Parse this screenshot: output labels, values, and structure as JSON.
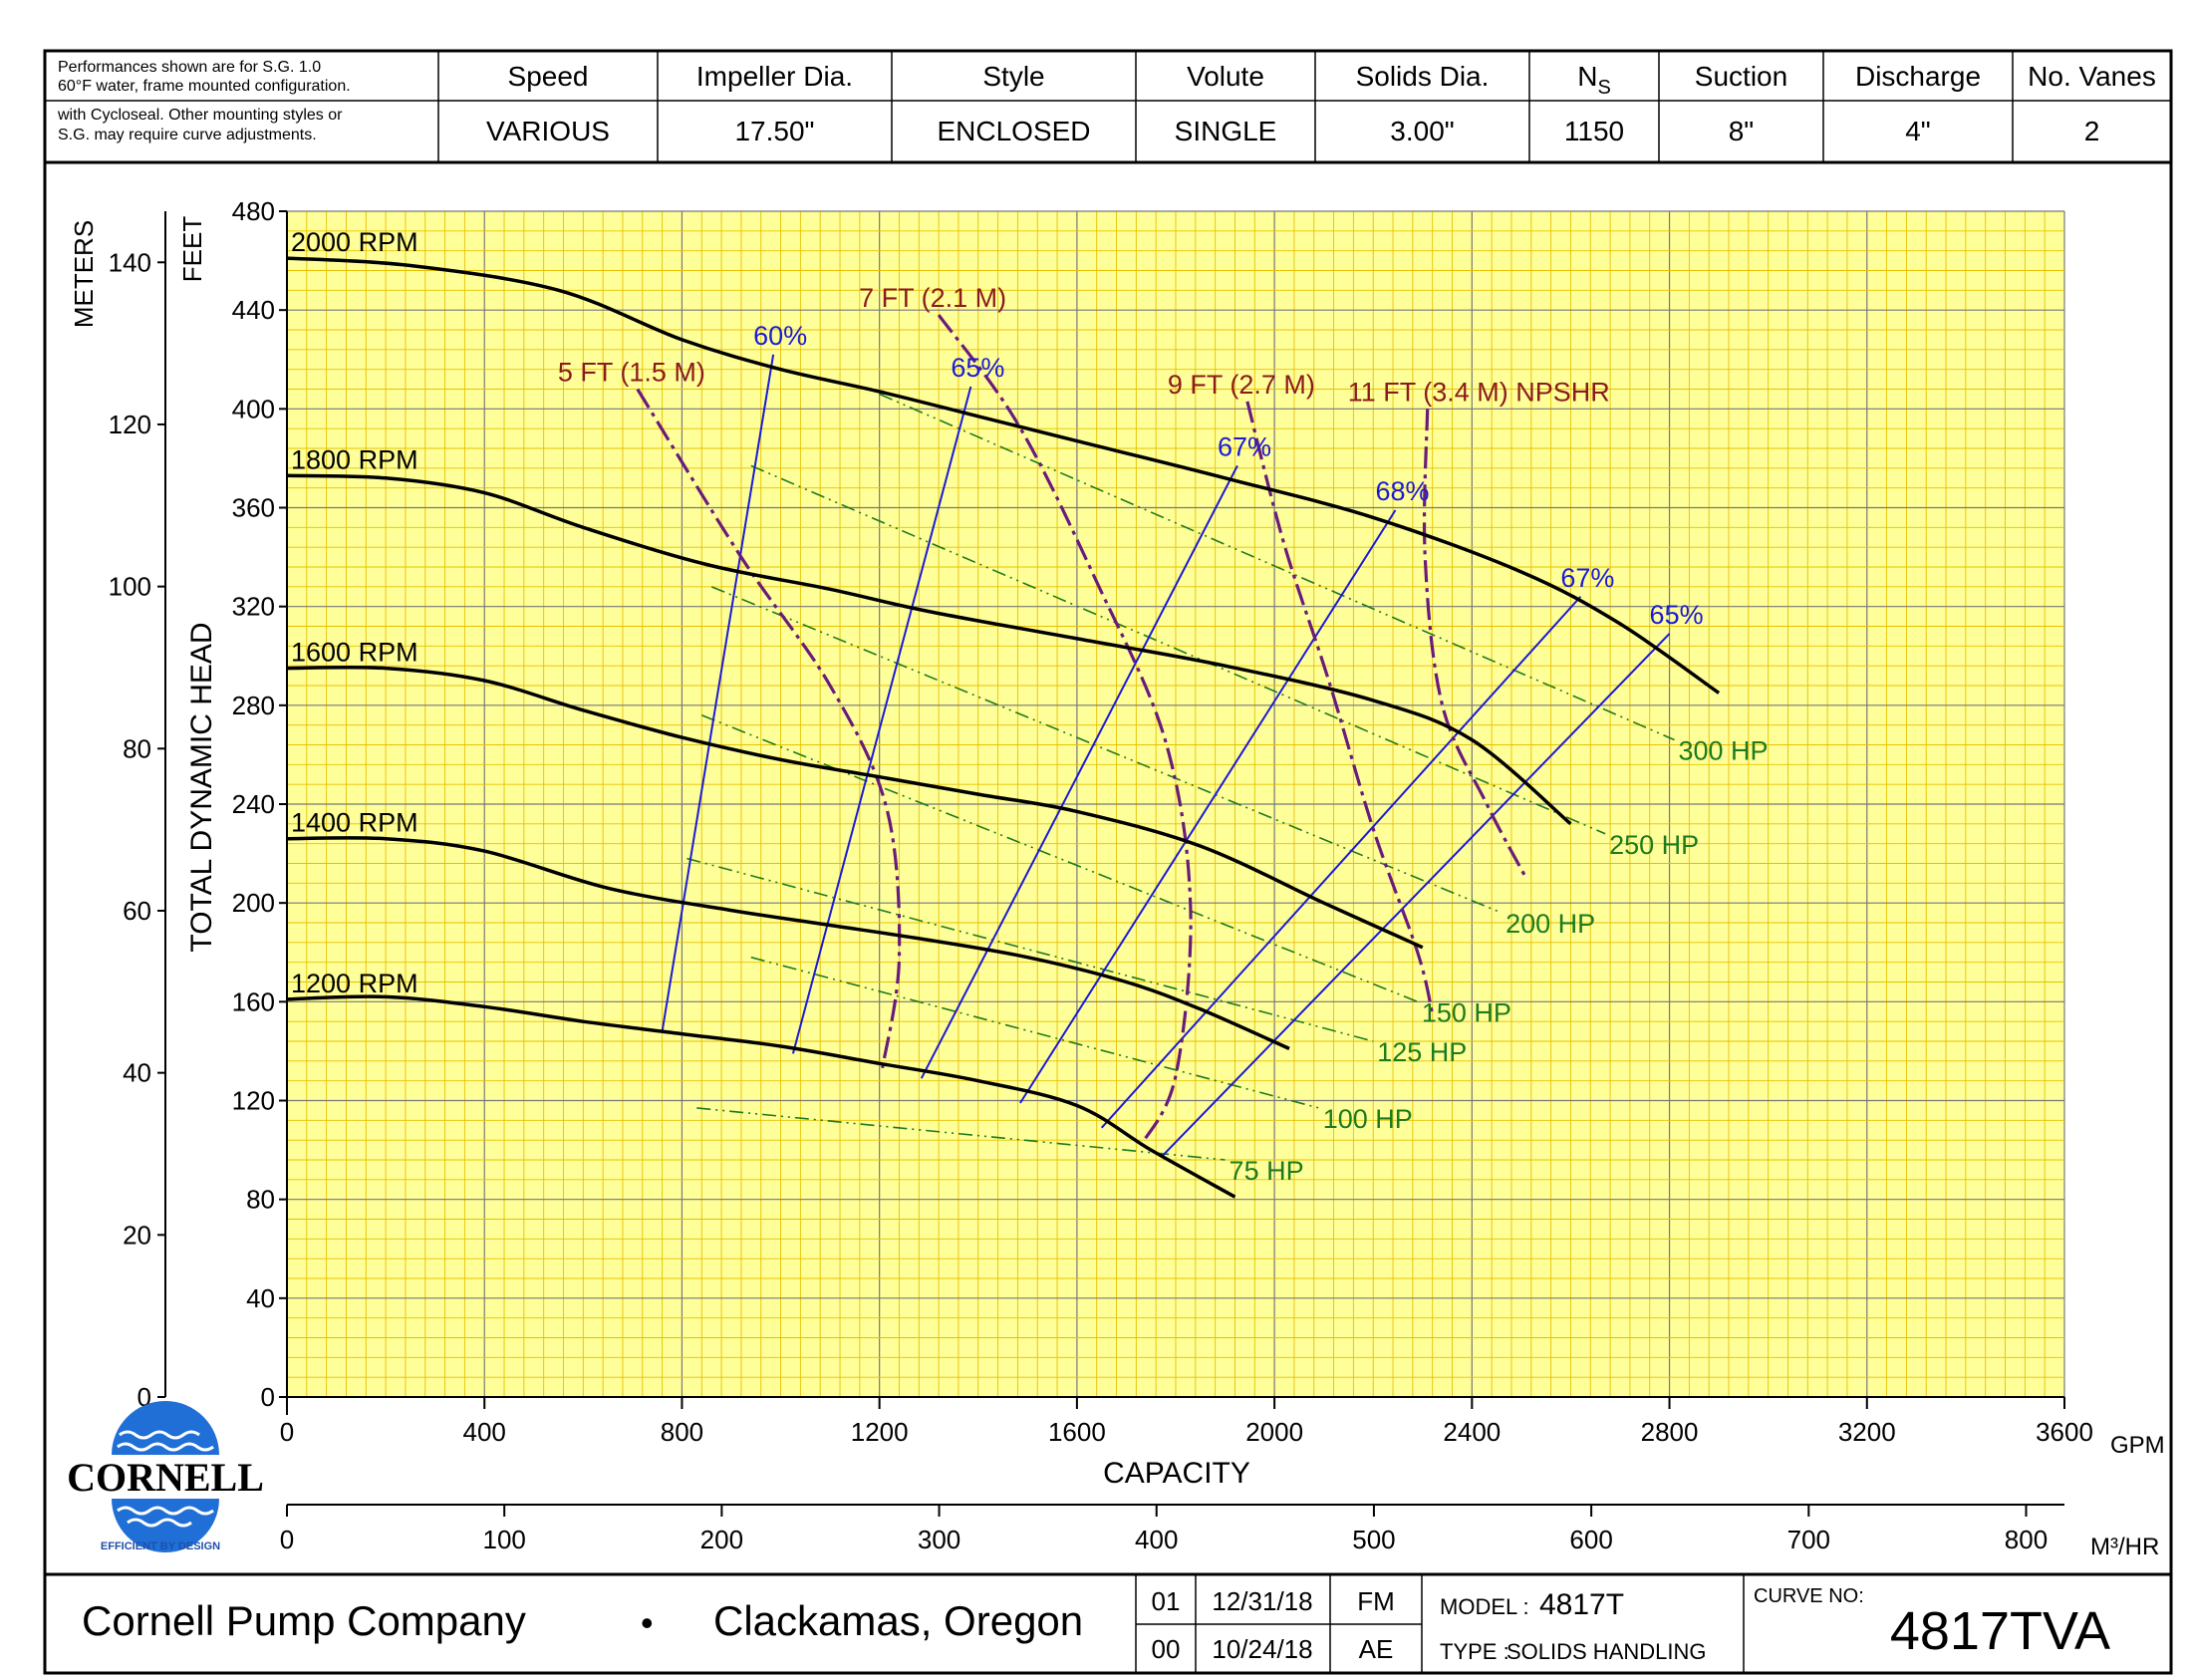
{
  "header": {
    "note_lines": [
      "Performances shown are for S.G. 1.0",
      "60°F water, frame mounted configuration.",
      "with Cycloseal. Other mounting styles or",
      "S.G. may require curve adjustments."
    ],
    "columns": [
      {
        "label": "Speed",
        "value": "VARIOUS"
      },
      {
        "label": "Impeller Dia.",
        "value": "17.50\""
      },
      {
        "label": "Style",
        "value": "ENCLOSED"
      },
      {
        "label": "Volute",
        "value": "SINGLE"
      },
      {
        "label": "Solids Dia.",
        "value": "3.00\""
      },
      {
        "label": "N",
        "label_sub": "S",
        "value": "1150"
      },
      {
        "label": "Suction",
        "value": "8\""
      },
      {
        "label": "Discharge",
        "value": "4\""
      },
      {
        "label": "No. Vanes",
        "value": "2"
      }
    ]
  },
  "chart_data": {
    "type": "line",
    "title": "",
    "xlabel": "CAPACITY",
    "x_unit": "GPM",
    "x2_unit": "M³/HR",
    "ylabel": "TOTAL DYNAMIC HEAD",
    "y_unit_left": "FEET",
    "y2_unit": "METERS",
    "xlim": [
      0,
      3600
    ],
    "ylim": [
      0,
      480
    ],
    "x_ticks": [
      0,
      400,
      800,
      1200,
      1600,
      2000,
      2400,
      2800,
      3200,
      3600
    ],
    "y_ticks": [
      0,
      40,
      80,
      120,
      160,
      200,
      240,
      280,
      320,
      360,
      400,
      440,
      480
    ],
    "meter_ticks": [
      0,
      20,
      40,
      60,
      80,
      100,
      120,
      140
    ],
    "m3hr_ticks": [
      0,
      100,
      200,
      300,
      400,
      500,
      600,
      700,
      800
    ],
    "grid": true,
    "colors": {
      "background": "#ffff99",
      "grid_minor": "#e6c000",
      "grid_major": "#777777",
      "rpm": "#000000",
      "efficiency": "#1a1ad6",
      "npshr": "#6a1b7a",
      "hp": "#1d7a1d",
      "npshr_label": "#8b1a1a"
    },
    "rpm_curves": [
      {
        "name": "2000 RPM",
        "points": [
          [
            0,
            461
          ],
          [
            250,
            458
          ],
          [
            550,
            448
          ],
          [
            800,
            428
          ],
          [
            1000,
            416
          ],
          [
            1200,
            407
          ],
          [
            1400,
            397
          ],
          [
            1600,
            387
          ],
          [
            1900,
            372
          ],
          [
            2200,
            356
          ],
          [
            2500,
            334
          ],
          [
            2700,
            313
          ],
          [
            2900,
            285
          ]
        ]
      },
      {
        "name": "1800 RPM",
        "points": [
          [
            0,
            373
          ],
          [
            200,
            372
          ],
          [
            400,
            366
          ],
          [
            600,
            352
          ],
          [
            850,
            337
          ],
          [
            1100,
            327
          ],
          [
            1300,
            318
          ],
          [
            1600,
            307
          ],
          [
            1900,
            296
          ],
          [
            2200,
            282
          ],
          [
            2400,
            266
          ],
          [
            2600,
            232
          ]
        ]
      },
      {
        "name": "1600 RPM",
        "points": [
          [
            0,
            295
          ],
          [
            200,
            295
          ],
          [
            400,
            290
          ],
          [
            600,
            278
          ],
          [
            800,
            267
          ],
          [
            1000,
            258
          ],
          [
            1200,
            251
          ],
          [
            1400,
            244
          ],
          [
            1600,
            237
          ],
          [
            1850,
            223
          ],
          [
            2100,
            200
          ],
          [
            2300,
            182
          ]
        ]
      },
      {
        "name": "1400 RPM",
        "points": [
          [
            0,
            226
          ],
          [
            200,
            226
          ],
          [
            400,
            221
          ],
          [
            650,
            206
          ],
          [
            900,
            197
          ],
          [
            1100,
            191
          ],
          [
            1300,
            185
          ],
          [
            1500,
            178
          ],
          [
            1700,
            168
          ],
          [
            1850,
            157
          ],
          [
            2030,
            141
          ]
        ]
      },
      {
        "name": "1200 RPM",
        "points": [
          [
            0,
            161
          ],
          [
            200,
            162
          ],
          [
            400,
            158
          ],
          [
            600,
            152
          ],
          [
            800,
            147
          ],
          [
            1000,
            142
          ],
          [
            1200,
            135
          ],
          [
            1400,
            128
          ],
          [
            1600,
            118
          ],
          [
            1750,
            100
          ],
          [
            1920,
            81
          ]
        ]
      }
    ],
    "efficiency_lines": [
      {
        "name": "60%",
        "points": [
          [
            760,
            148
          ],
          [
            985,
            422
          ]
        ]
      },
      {
        "name": "65%",
        "points": [
          [
            1025,
            139
          ],
          [
            1385,
            409
          ]
        ]
      },
      {
        "name": "67%",
        "points": [
          [
            1285,
            129
          ],
          [
            1925,
            377
          ]
        ]
      },
      {
        "name": "68%",
        "points": [
          [
            1485,
            119
          ],
          [
            2245,
            359
          ]
        ]
      },
      {
        "name": "67%",
        "points": [
          [
            1650,
            109
          ],
          [
            2620,
            324
          ]
        ]
      },
      {
        "name": "65%",
        "points": [
          [
            1770,
            97
          ],
          [
            2800,
            309
          ]
        ]
      }
    ],
    "npshr_curves": [
      {
        "name": "5 FT (1.5 M)",
        "points": [
          [
            710,
            408
          ],
          [
            920,
            340
          ],
          [
            1100,
            288
          ],
          [
            1215,
            238
          ],
          [
            1240,
            178
          ],
          [
            1205,
            132
          ]
        ]
      },
      {
        "name": "7 FT (2.1 M)",
        "points": [
          [
            1320,
            438
          ],
          [
            1480,
            394
          ],
          [
            1640,
            330
          ],
          [
            1780,
            265
          ],
          [
            1830,
            198
          ],
          [
            1800,
            130
          ],
          [
            1730,
            102
          ]
        ]
      },
      {
        "name": "9 FT (2.7 M)",
        "points": [
          [
            1945,
            403
          ],
          [
            2020,
            345
          ],
          [
            2110,
            290
          ],
          [
            2200,
            230
          ],
          [
            2290,
            180
          ],
          [
            2320,
            155
          ]
        ]
      },
      {
        "name": "11 FT (3.4 M) NPSHR",
        "points": [
          [
            2310,
            400
          ],
          [
            2305,
            340
          ],
          [
            2340,
            280
          ],
          [
            2430,
            240
          ],
          [
            2510,
            210
          ]
        ]
      }
    ],
    "hp_lines": [
      {
        "name": "300 HP",
        "points": [
          [
            1200,
            406
          ],
          [
            2810,
            266
          ]
        ]
      },
      {
        "name": "250 HP",
        "points": [
          [
            940,
            377
          ],
          [
            2670,
            228
          ]
        ]
      },
      {
        "name": "200 HP",
        "points": [
          [
            860,
            328
          ],
          [
            2460,
            196
          ]
        ]
      },
      {
        "name": "150 HP",
        "points": [
          [
            840,
            276
          ],
          [
            2290,
            160
          ]
        ]
      },
      {
        "name": "125 HP",
        "points": [
          [
            810,
            218
          ],
          [
            2200,
            144
          ]
        ]
      },
      {
        "name": "100 HP",
        "points": [
          [
            940,
            178
          ],
          [
            2090,
            117
          ]
        ]
      },
      {
        "name": "75 HP",
        "points": [
          [
            830,
            117
          ],
          [
            1900,
            96
          ]
        ]
      }
    ]
  },
  "logo": {
    "name": "CORNELL",
    "tagline": "EFFICIENT BY DESIGN"
  },
  "footer": {
    "company": "Cornell Pump Company",
    "bullet": "•",
    "location": "Clackamas, Oregon",
    "revisions": [
      {
        "rev": "01",
        "date": "12/31/18",
        "initials": "FM"
      },
      {
        "rev": "00",
        "date": "10/24/18",
        "initials": "AE"
      }
    ],
    "model_label": "MODEL :",
    "model_value": "4817T",
    "type_label": "TYPE :",
    "type_value": "SOLIDS HANDLING",
    "curve_label": "CURVE NO:",
    "curve_value": "4817TVA"
  }
}
